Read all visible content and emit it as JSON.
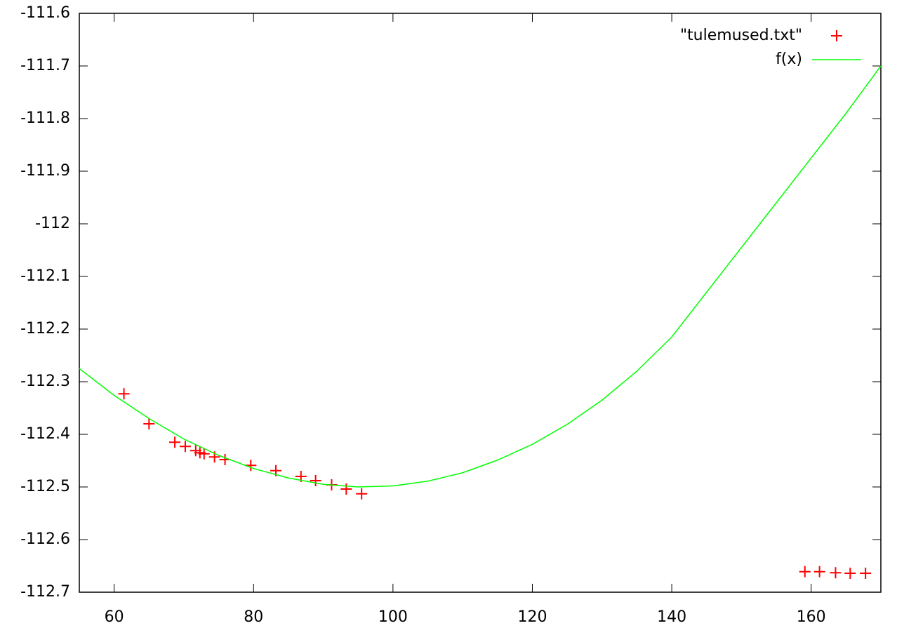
{
  "chart_data": {
    "type": "scatter",
    "xlim": [
      55,
      170
    ],
    "xticks": [
      60,
      80,
      100,
      120,
      140,
      160
    ],
    "ylim": [
      -112.7,
      -111.6
    ],
    "yticks": [
      -111.6,
      -111.7,
      -111.8,
      -111.9,
      -112,
      -112.1,
      -112.2,
      -112.3,
      -112.4,
      -112.5,
      -112.6,
      -112.7
    ],
    "grid": false,
    "legend": "top-right",
    "series": [
      {
        "name": "\"tulemused.txt\"",
        "type": "scatter",
        "color": "#ff0000",
        "x": [
          61.4,
          65.0,
          68.7,
          70.2,
          71.7,
          72.3,
          72.9,
          74.4,
          75.9,
          79.6,
          83.2,
          86.8,
          88.9,
          91.2,
          93.3,
          95.5,
          159.1,
          161.2,
          163.5,
          165.6,
          167.8
        ],
        "values": [
          -112.323,
          -112.38,
          -112.415,
          -112.423,
          -112.431,
          -112.435,
          -112.437,
          -112.443,
          -112.448,
          -112.459,
          -112.469,
          -112.48,
          -112.488,
          -112.496,
          -112.504,
          -112.513,
          -112.661,
          -112.661,
          -112.663,
          -112.664,
          -112.664
        ]
      },
      {
        "name": "f(x)",
        "type": "line",
        "color": "#00ff00",
        "x": [
          55,
          60,
          65,
          70,
          75,
          80,
          85,
          90,
          95,
          100,
          105,
          110,
          115,
          120,
          125,
          130,
          135,
          140,
          145,
          150,
          155,
          160,
          165,
          170
        ],
        "values": [
          -112.275,
          -112.326,
          -112.37,
          -112.409,
          -112.44,
          -112.465,
          -112.483,
          -112.495,
          -112.5,
          -112.498,
          -112.489,
          -112.473,
          -112.449,
          -112.419,
          -112.381,
          -112.335,
          -112.28,
          -112.215,
          -112.13,
          -112.045,
          -111.96,
          -111.875,
          -111.79,
          -111.7
        ]
      }
    ]
  }
}
